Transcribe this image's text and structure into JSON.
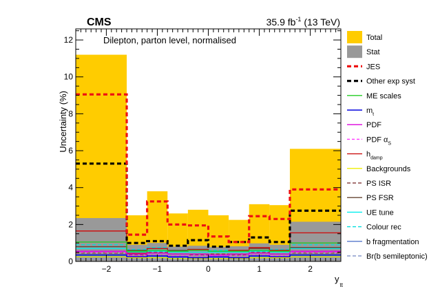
{
  "chart_data": {
    "type": "step",
    "title_left": "CMS",
    "title_right": "35.9 fb",
    "title_right_sup": "-1",
    "title_right_tail": " (13 TeV)",
    "annotation": "Dilepton, parton level, normalised",
    "xlabel": "y",
    "xlabel_sub": "tt",
    "ylabel": "Uncertainty (%)",
    "xlim": [
      -2.6,
      2.6
    ],
    "ylim": [
      0,
      12.6
    ],
    "x_ticks": [
      -2,
      -1,
      0,
      1,
      2
    ],
    "y_ticks": [
      0,
      2,
      4,
      6,
      8,
      10,
      12
    ],
    "bin_edges": [
      -2.6,
      -1.6,
      -1.2,
      -0.8,
      -0.4,
      0.0,
      0.4,
      0.8,
      1.2,
      1.6,
      2.6
    ],
    "series": [
      {
        "key": "total",
        "name": "Total",
        "kind": "fill",
        "color": "#ffcc00",
        "values": [
          11.2,
          2.5,
          3.8,
          2.6,
          2.8,
          2.5,
          2.25,
          3.1,
          3.05,
          6.1
        ]
      },
      {
        "key": "stat",
        "name": "Stat",
        "kind": "fill",
        "color": "#999999",
        "values": [
          2.35,
          0.9,
          1.0,
          0.8,
          0.85,
          0.78,
          0.82,
          0.98,
          0.9,
          2.15
        ]
      },
      {
        "key": "jes",
        "name": "JES",
        "kind": "line",
        "color": "#ee1111",
        "dash": "6,4",
        "width": 3.2,
        "values": [
          9.05,
          1.45,
          3.25,
          2.0,
          1.95,
          1.35,
          1.05,
          2.45,
          2.3,
          3.9
        ]
      },
      {
        "key": "other_exp",
        "name": "Other exp syst",
        "kind": "line",
        "color": "#000000",
        "dash": "6,4",
        "width": 3.2,
        "values": [
          5.3,
          1.0,
          1.1,
          0.85,
          1.15,
          0.8,
          1.05,
          1.3,
          1.05,
          2.75
        ]
      },
      {
        "key": "me_scales",
        "name": "ME scales",
        "kind": "line",
        "color": "#22cc22",
        "width": 1.4,
        "values": [
          1.05,
          0.55,
          0.6,
          0.55,
          0.6,
          0.55,
          0.55,
          0.6,
          0.55,
          1.0
        ]
      },
      {
        "key": "mt",
        "name": "m",
        "name_sub": "t",
        "kind": "line",
        "color": "#0000dd",
        "width": 1.4,
        "values": [
          0.35,
          0.25,
          0.3,
          0.25,
          0.2,
          0.25,
          0.2,
          0.3,
          0.25,
          0.35
        ]
      },
      {
        "key": "pdf",
        "name": "PDF",
        "kind": "line",
        "color": "#dd00dd",
        "width": 1.4,
        "values": [
          0.55,
          0.4,
          0.45,
          0.4,
          0.4,
          0.35,
          0.4,
          0.45,
          0.4,
          0.55
        ]
      },
      {
        "key": "pdf_as",
        "name": "PDF α",
        "name_sub": "S",
        "kind": "line",
        "color": "#ff33ff",
        "dash": "4,3",
        "width": 1.4,
        "values": [
          0.5,
          0.3,
          0.35,
          0.3,
          0.3,
          0.3,
          0.3,
          0.35,
          0.3,
          0.5
        ]
      },
      {
        "key": "hdamp",
        "name": "h",
        "name_sub": "damp",
        "kind": "line",
        "color": "#cc1111",
        "width": 1.4,
        "values": [
          1.65,
          0.45,
          0.7,
          0.55,
          0.65,
          0.55,
          0.6,
          0.75,
          0.6,
          1.55
        ]
      },
      {
        "key": "backgrounds",
        "name": "Backgrounds",
        "kind": "line",
        "color": "#eeee00",
        "width": 1.4,
        "values": [
          0.25,
          0.2,
          0.2,
          0.15,
          0.15,
          0.15,
          0.15,
          0.2,
          0.2,
          0.25
        ]
      },
      {
        "key": "ps_isr",
        "name": "PS ISR",
        "kind": "line",
        "color": "#884444",
        "dash": "5,3",
        "width": 1.4,
        "values": [
          0.45,
          0.35,
          0.5,
          0.4,
          0.35,
          0.4,
          0.35,
          0.5,
          0.4,
          0.45
        ]
      },
      {
        "key": "ps_fsr",
        "name": "PS FSR",
        "kind": "line",
        "color": "#664433",
        "width": 1.4,
        "values": [
          0.8,
          0.6,
          0.7,
          0.6,
          0.65,
          0.55,
          0.6,
          0.7,
          0.6,
          0.75
        ]
      },
      {
        "key": "ue_tune",
        "name": "UE tune",
        "kind": "line",
        "color": "#00eeee",
        "width": 1.4,
        "values": [
          0.7,
          0.5,
          0.55,
          0.5,
          0.5,
          0.5,
          0.5,
          0.55,
          0.5,
          0.7
        ]
      },
      {
        "key": "colour_rec",
        "name": "Colour rec",
        "kind": "line",
        "color": "#00dddd",
        "dash": "5,3",
        "width": 1.4,
        "values": [
          0.9,
          0.65,
          0.75,
          0.6,
          0.65,
          0.6,
          0.6,
          0.75,
          0.65,
          0.9
        ]
      },
      {
        "key": "b_frag",
        "name": "b fragmentation",
        "kind": "line",
        "color": "#5577cc",
        "width": 1.4,
        "values": [
          0.3,
          0.2,
          0.25,
          0.2,
          0.2,
          0.2,
          0.2,
          0.25,
          0.2,
          0.3
        ]
      },
      {
        "key": "br_bsl",
        "name": "Br(b semileptonic)",
        "kind": "line",
        "color": "#8899cc",
        "dash": "5,3",
        "width": 1.4,
        "values": [
          0.15,
          0.1,
          0.12,
          0.1,
          0.1,
          0.1,
          0.1,
          0.12,
          0.1,
          0.15
        ]
      }
    ]
  }
}
